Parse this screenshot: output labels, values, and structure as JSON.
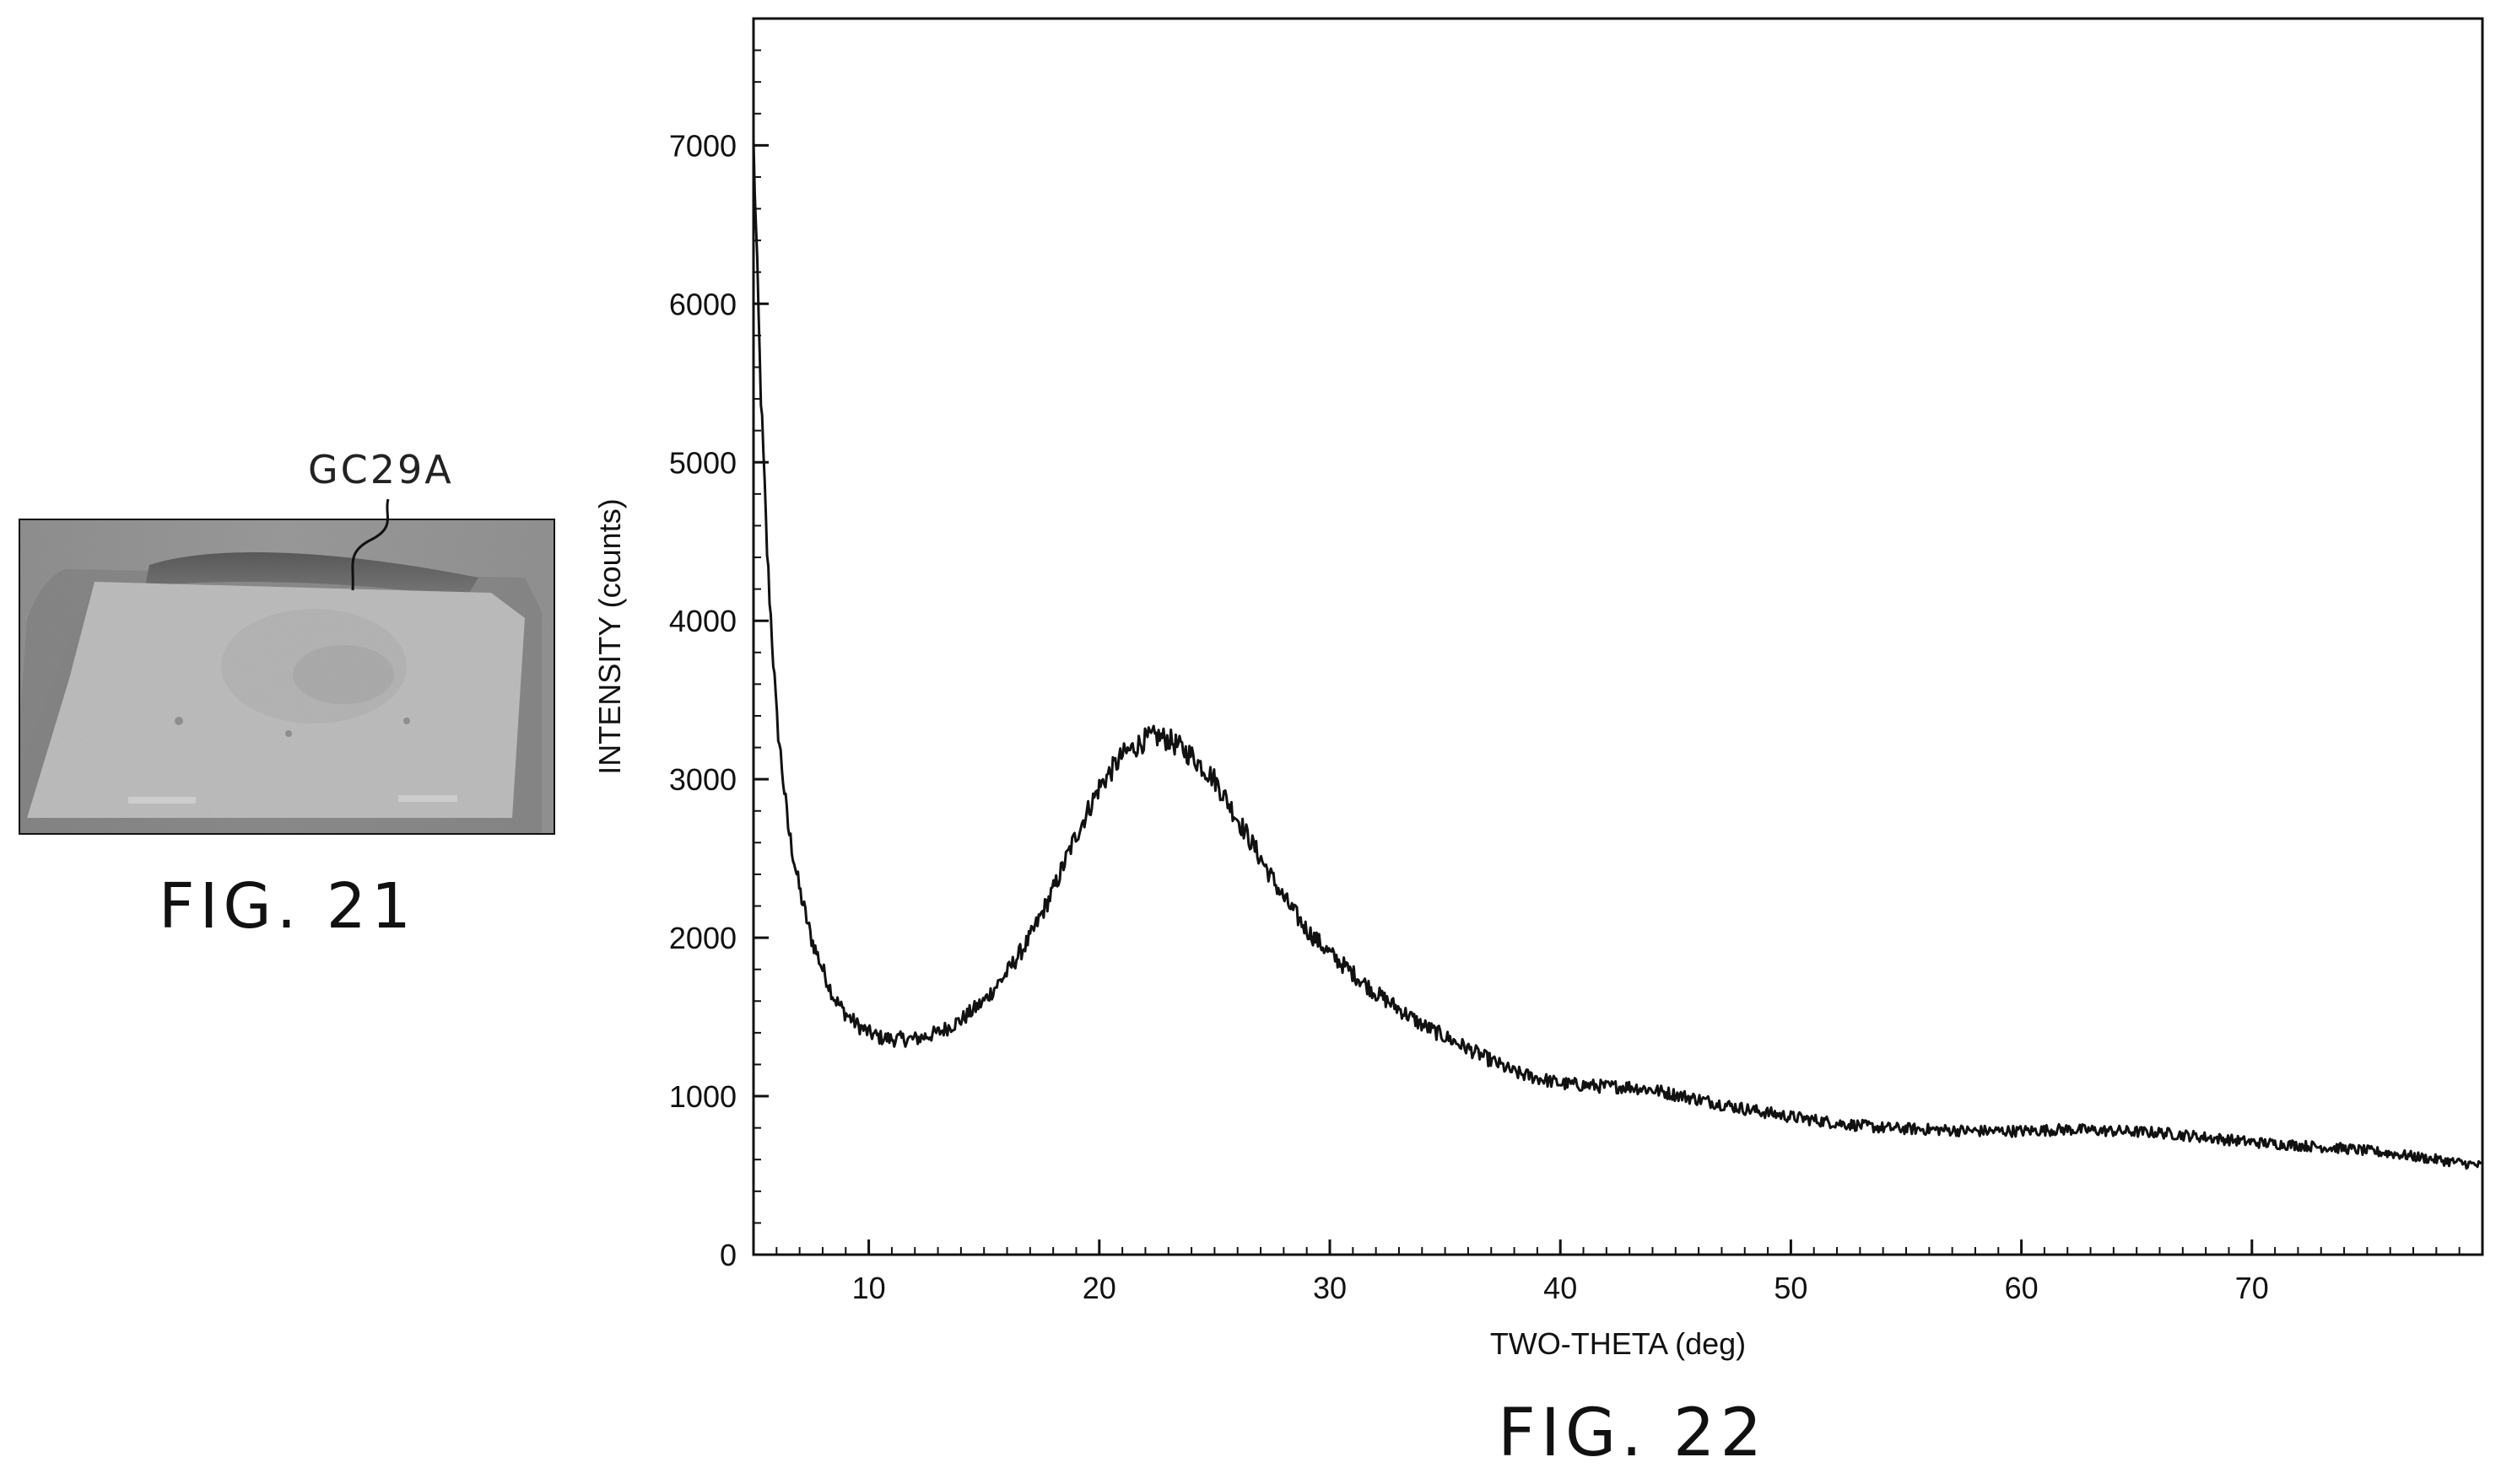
{
  "figures": {
    "fig21": {
      "caption": "FIG. 21",
      "sample_label": "GC29A"
    },
    "fig22": {
      "caption": "FIG. 22"
    }
  },
  "chart_data": {
    "type": "line",
    "xlabel": "TWO-THETA (deg)",
    "ylabel": "INTENSITY (counts)",
    "xlim": [
      5,
      80
    ],
    "ylim": [
      0,
      7800
    ],
    "x_ticks": [
      10,
      20,
      30,
      40,
      50,
      60,
      70
    ],
    "y_ticks": [
      0,
      1000,
      2000,
      3000,
      4000,
      5000,
      6000,
      7000
    ],
    "grid": false,
    "line_color": "#111111",
    "series": [
      {
        "x": [
          5.0,
          5.3,
          5.6,
          6.0,
          6.5,
          7.0,
          7.5,
          8.0,
          8.5,
          9.0,
          9.5,
          10.0,
          10.5,
          11.0,
          12.0,
          13.0,
          14.0,
          15.0,
          16.0,
          17.0,
          18.0,
          19.0,
          20.0,
          21.0,
          22.0,
          22.5,
          23.0,
          24.0,
          25.0,
          26.0,
          27.0,
          28.0,
          29.0,
          30.0,
          32.0,
          34.0,
          36.0,
          38.0,
          40.0,
          42.0,
          43.0,
          44.0,
          46.0,
          48.0,
          50.0,
          52.0,
          54.0,
          56.0,
          58.0,
          60.0,
          62.0,
          64.0,
          66.0,
          68.0,
          70.0,
          72.0,
          74.0,
          76.0,
          78.0,
          80.0
        ],
        "y": [
          7000,
          5500,
          4400,
          3400,
          2700,
          2300,
          2000,
          1800,
          1620,
          1520,
          1450,
          1400,
          1370,
          1360,
          1360,
          1400,
          1480,
          1600,
          1780,
          2000,
          2300,
          2650,
          2950,
          3150,
          3250,
          3270,
          3250,
          3150,
          3000,
          2750,
          2500,
          2250,
          2050,
          1900,
          1650,
          1450,
          1300,
          1150,
          1080,
          1060,
          1060,
          1040,
          980,
          920,
          870,
          830,
          800,
          790,
          780,
          780,
          790,
          780,
          770,
          740,
          710,
          690,
          670,
          640,
          600,
          560
        ]
      }
    ]
  }
}
